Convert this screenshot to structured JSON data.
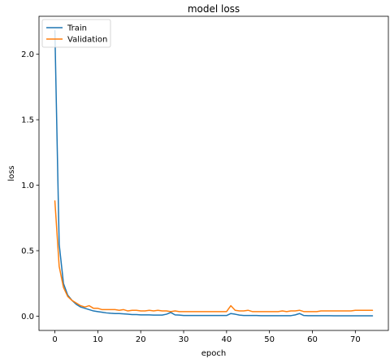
{
  "chart_data": {
    "type": "line",
    "title": "model loss",
    "xlabel": "epoch",
    "ylabel": "loss",
    "xlim": [
      -3.7,
      77.7
    ],
    "ylim": [
      -0.109,
      2.29
    ],
    "xticks": [
      0,
      10,
      20,
      30,
      40,
      50,
      60,
      70
    ],
    "xtick_labels": [
      "0",
      "10",
      "20",
      "30",
      "40",
      "50",
      "60",
      "70"
    ],
    "yticks": [
      0.0,
      0.5,
      1.0,
      1.5,
      2.0
    ],
    "ytick_labels": [
      "0.0",
      "0.5",
      "1.0",
      "1.5",
      "2.0"
    ],
    "grid": false,
    "legend_position": "upper left",
    "series": [
      {
        "name": "Train",
        "color": "#1f77b4",
        "x": [
          0,
          1,
          2,
          3,
          4,
          5,
          6,
          7,
          8,
          9,
          10,
          11,
          12,
          13,
          14,
          15,
          16,
          17,
          18,
          19,
          20,
          21,
          22,
          23,
          24,
          25,
          26,
          27,
          28,
          29,
          30,
          31,
          32,
          33,
          34,
          35,
          36,
          37,
          38,
          39,
          40,
          41,
          42,
          43,
          44,
          45,
          46,
          47,
          48,
          49,
          50,
          51,
          52,
          53,
          54,
          55,
          56,
          57,
          58,
          59,
          60,
          61,
          62,
          63,
          64,
          65,
          66,
          67,
          68,
          69,
          70,
          71,
          72,
          73,
          74
        ],
        "y": [
          2.18,
          0.55,
          0.25,
          0.16,
          0.12,
          0.09,
          0.07,
          0.06,
          0.05,
          0.04,
          0.035,
          0.03,
          0.025,
          0.022,
          0.02,
          0.02,
          0.018,
          0.015,
          0.012,
          0.012,
          0.01,
          0.01,
          0.01,
          0.008,
          0.008,
          0.008,
          0.015,
          0.028,
          0.01,
          0.008,
          0.005,
          0.005,
          0.005,
          0.005,
          0.005,
          0.005,
          0.005,
          0.005,
          0.005,
          0.005,
          0.005,
          0.02,
          0.015,
          0.008,
          0.005,
          0.005,
          0.005,
          0.005,
          0.004,
          0.004,
          0.004,
          0.004,
          0.004,
          0.004,
          0.004,
          0.004,
          0.01,
          0.02,
          0.005,
          0.004,
          0.004,
          0.004,
          0.004,
          0.004,
          0.004,
          0.003,
          0.003,
          0.003,
          0.003,
          0.003,
          0.003,
          0.003,
          0.003,
          0.003,
          0.003
        ]
      },
      {
        "name": "Validation",
        "color": "#ff7f0e",
        "x": [
          0,
          1,
          2,
          3,
          4,
          5,
          6,
          7,
          8,
          9,
          10,
          11,
          12,
          13,
          14,
          15,
          16,
          17,
          18,
          19,
          20,
          21,
          22,
          23,
          24,
          25,
          26,
          27,
          28,
          29,
          30,
          31,
          32,
          33,
          34,
          35,
          36,
          37,
          38,
          39,
          40,
          41,
          42,
          43,
          44,
          45,
          46,
          47,
          48,
          49,
          50,
          51,
          52,
          53,
          54,
          55,
          56,
          57,
          58,
          59,
          60,
          61,
          62,
          63,
          64,
          65,
          66,
          67,
          68,
          69,
          70,
          71,
          72,
          73,
          74
        ],
        "y": [
          0.88,
          0.38,
          0.22,
          0.15,
          0.12,
          0.1,
          0.08,
          0.07,
          0.08,
          0.06,
          0.06,
          0.05,
          0.05,
          0.05,
          0.05,
          0.045,
          0.05,
          0.04,
          0.045,
          0.045,
          0.04,
          0.04,
          0.045,
          0.04,
          0.045,
          0.04,
          0.04,
          0.035,
          0.04,
          0.035,
          0.035,
          0.035,
          0.035,
          0.035,
          0.035,
          0.035,
          0.035,
          0.035,
          0.035,
          0.035,
          0.035,
          0.08,
          0.045,
          0.04,
          0.04,
          0.045,
          0.035,
          0.035,
          0.035,
          0.035,
          0.035,
          0.035,
          0.035,
          0.04,
          0.035,
          0.04,
          0.04,
          0.045,
          0.035,
          0.035,
          0.035,
          0.035,
          0.04,
          0.04,
          0.04,
          0.04,
          0.04,
          0.04,
          0.04,
          0.04,
          0.045,
          0.045,
          0.045,
          0.045,
          0.045
        ]
      }
    ]
  }
}
